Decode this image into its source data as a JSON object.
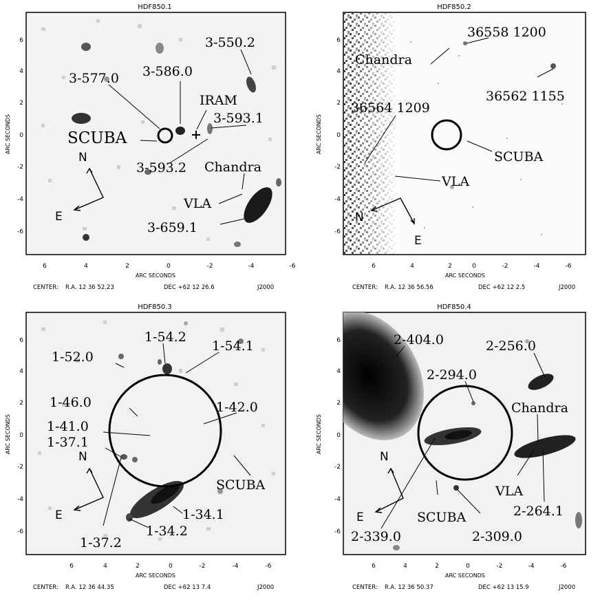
{
  "panels": [
    {
      "title": "HDF850.1",
      "xlabel": "ARC SECONDS",
      "ylabel": "ARC SECONDS",
      "xticks": [
        "6",
        "4",
        "2",
        "0",
        "-2",
        "-4",
        "-6"
      ],
      "yticks": [
        "6",
        "4",
        "2",
        "0",
        "-2",
        "-4",
        "-6"
      ],
      "center": {
        "label": "CENTER:",
        "ra": "R.A. 12 36 52.23",
        "dec": "DEC +62 12 26.6",
        "epoch": "J2000"
      },
      "compass": {
        "n": "N",
        "e": "E"
      },
      "labels": [
        "3-550.2",
        "3-586.0",
        "3-577.0",
        "IRAM",
        "3-593.1",
        "SCUBA",
        "Chandra",
        "3-593.2",
        "VLA",
        "3-659.1"
      ]
    },
    {
      "title": "HDF850.2",
      "xlabel": "ARC SECONDS",
      "ylabel": "ARC SECONDS",
      "xticks": [
        "6",
        "4",
        "2",
        "0",
        "-2",
        "-4",
        "-6"
      ],
      "yticks": [
        "6",
        "4",
        "2",
        "0",
        "-2",
        "-4",
        "-6"
      ],
      "center": {
        "label": "CENTER:",
        "ra": "R.A. 12 36 56.56",
        "dec": "DEC +62 12  2.5",
        "epoch": "J2000"
      },
      "compass": {
        "n": "N",
        "e": "E"
      },
      "labels": [
        "36558 1200",
        "Chandra",
        "36562 1155",
        "36564 1209",
        "SCUBA",
        "VLA"
      ]
    },
    {
      "title": "HDF850.3",
      "xlabel": "ARC SECONDS",
      "ylabel": "ARC SECONDS",
      "xticks": [
        "6",
        "4",
        "2",
        "0",
        "-2",
        "-4",
        "-6"
      ],
      "yticks": [
        "6",
        "4",
        "2",
        "0",
        "-2",
        "-4",
        "-6"
      ],
      "center": {
        "label": "CENTER:",
        "ra": "R.A. 12 36 44.35",
        "dec": "DEC +62 13  7.4",
        "epoch": "J2000"
      },
      "compass": {
        "n": "N",
        "e": "E"
      },
      "labels": [
        "1-54.2",
        "1-54.1",
        "1-52.0",
        "1-46.0",
        "1-42.0",
        "1-41.0",
        "1-37.1",
        "SCUBA",
        "1-34.1",
        "1-37.2",
        "1-34.2"
      ]
    },
    {
      "title": "HDF850.4",
      "xlabel": "ARC SECONDS",
      "ylabel": "ARC SECONDS",
      "xticks": [
        "6",
        "4",
        "2",
        "0",
        "-2",
        "-4",
        "-6"
      ],
      "yticks": [
        "6",
        "4",
        "2",
        "0",
        "-2",
        "-4",
        "-6"
      ],
      "center": {
        "label": "CENTER:",
        "ra": "R.A. 12 36 50.37",
        "dec": "DEC +62 13 15.9",
        "epoch": "J2000"
      },
      "compass": {
        "n": "N",
        "e": "E"
      },
      "labels": [
        "2-404.0",
        "2-256.0",
        "2-294.0",
        "Chandra",
        "VLA",
        "2-264.1",
        "SCUBA",
        "2-339.0",
        "2-309.0"
      ]
    }
  ]
}
